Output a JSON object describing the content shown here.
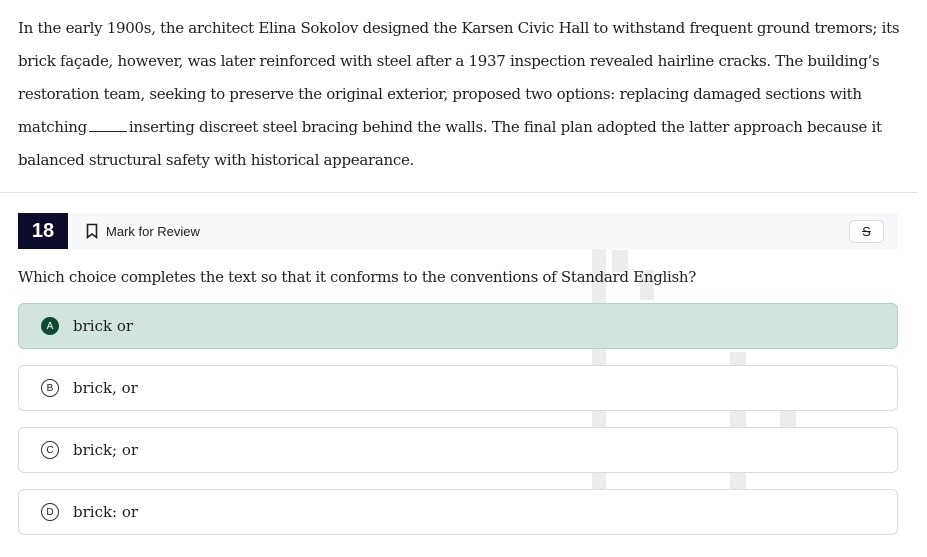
{
  "passage": {
    "before_blank": "In the early 1900s, the architect Elina Sokolov designed the Karsen Civic Hall to withstand frequent ground tremors; its brick façade, however, was later reinforced with steel after a 1937 inspection revealed hairline cracks. The building’s restoration team, seeking to preserve the original exterior, proposed two options: replacing damaged sections with matching",
    "after_blank": "inserting discreet steel bracing behind the walls. The final plan adopted the latter approach because it balanced structural safety with historical appearance."
  },
  "question": {
    "number": "18",
    "mark_for_review": "Mark for Review",
    "eliminator_label": "S",
    "prompt": "Which choice completes the text so that it conforms to the conventions of Standard English?"
  },
  "choices": [
    {
      "letter": "A",
      "text": "brick or",
      "selected": true
    },
    {
      "letter": "B",
      "text": "brick, or",
      "selected": false
    },
    {
      "letter": "C",
      "text": "brick; or",
      "selected": false
    },
    {
      "letter": "D",
      "text": "brick: or",
      "selected": false
    }
  ],
  "colors": {
    "selected_bg": "#d1e5dc",
    "selected_letter": "#0e4a2f",
    "question_number_bg": "#0d0d2b"
  }
}
